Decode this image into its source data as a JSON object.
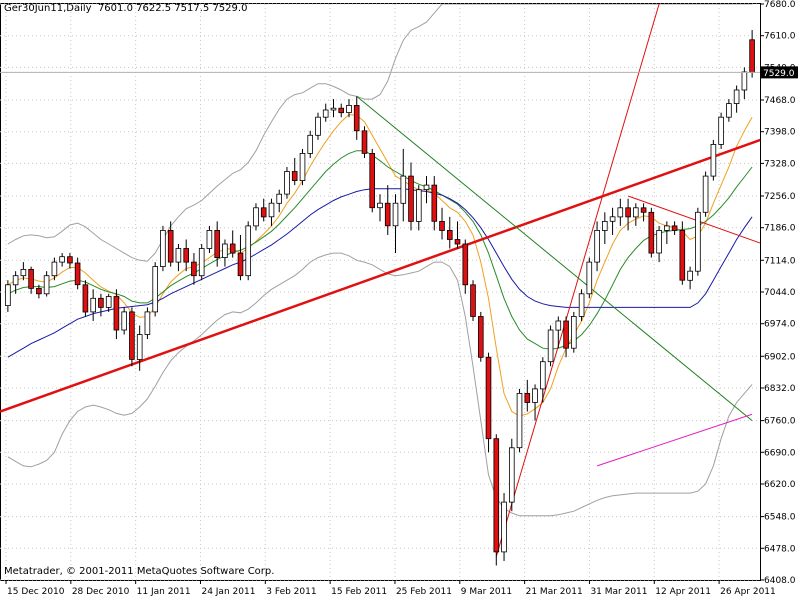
{
  "header": {
    "symbol": "Ger30Jun11,Daily",
    "ohlc": "7601.0 7622.5 7517.5 7529.0"
  },
  "footer": {
    "copyright": "Metatrader, © 2001-2011 MetaQuotes Software Corp."
  },
  "colors": {
    "bull": "#ffffff",
    "bear": "#dd1111",
    "candle_outline": "#000000",
    "ma_fast": "#f0a020",
    "ma_mid": "#2a8a2a",
    "ma_slow": "#1a1aa8",
    "bands": "#a0a0a0",
    "trend_red": "#e01010",
    "trend_green": "#208020",
    "trend_magenta": "#e020c0",
    "grid": "#c8c8c8"
  },
  "chart_data": {
    "type": "candlestick",
    "ylim": [
      6408,
      7680
    ],
    "y_ticks": [
      "7680.0",
      "7610.0",
      "7540.0",
      "7468.0",
      "7398.0",
      "7328.0",
      "7256.0",
      "7186.0",
      "7114.0",
      "7044.0",
      "6974.0",
      "6902.0",
      "6832.0",
      "6760.0",
      "6690.0",
      "6620.0",
      "6548.0",
      "6478.0",
      "6408.0"
    ],
    "x_ticks": [
      "15 Dec 2010",
      "28 Dec 2010",
      "11 Jan 2011",
      "24 Jan 2011",
      "3 Feb 2011",
      "15 Feb 2011",
      "25 Feb 2011",
      "9 Mar 2011",
      "21 Mar 2011",
      "31 Mar 2011",
      "12 Apr 2011",
      "26 Apr 2011"
    ],
    "current_price_label": "7529.0",
    "current_price": 7529.0,
    "candles": [
      [
        7014,
        7070,
        7000,
        7060
      ],
      [
        7060,
        7090,
        7040,
        7080
      ],
      [
        7080,
        7110,
        7070,
        7094
      ],
      [
        7094,
        7100,
        7040,
        7052
      ],
      [
        7052,
        7060,
        7030,
        7040
      ],
      [
        7040,
        7090,
        7034,
        7080
      ],
      [
        7080,
        7120,
        7070,
        7110
      ],
      [
        7110,
        7130,
        7100,
        7122
      ],
      [
        7122,
        7130,
        7096,
        7108
      ],
      [
        7108,
        7120,
        7050,
        7060
      ],
      [
        7060,
        7070,
        6990,
        7000
      ],
      [
        7000,
        7050,
        6980,
        7030
      ],
      [
        7030,
        7040,
        6990,
        7010
      ],
      [
        7010,
        7040,
        7000,
        7034
      ],
      [
        7034,
        7050,
        6940,
        6960
      ],
      [
        6960,
        7010,
        6950,
        7000
      ],
      [
        7000,
        7010,
        6880,
        6895
      ],
      [
        6895,
        6970,
        6870,
        6950
      ],
      [
        6950,
        7010,
        6940,
        7000
      ],
      [
        7000,
        7110,
        6990,
        7100
      ],
      [
        7100,
        7190,
        7090,
        7180
      ],
      [
        7180,
        7200,
        7100,
        7110
      ],
      [
        7110,
        7150,
        7090,
        7140
      ],
      [
        7140,
        7160,
        7090,
        7110
      ],
      [
        7110,
        7130,
        7060,
        7080
      ],
      [
        7080,
        7150,
        7070,
        7140
      ],
      [
        7140,
        7190,
        7130,
        7180
      ],
      [
        7180,
        7200,
        7100,
        7120
      ],
      [
        7120,
        7160,
        7100,
        7150
      ],
      [
        7150,
        7180,
        7120,
        7130
      ],
      [
        7130,
        7170,
        7070,
        7080
      ],
      [
        7080,
        7200,
        7070,
        7190
      ],
      [
        7190,
        7240,
        7180,
        7230
      ],
      [
        7230,
        7250,
        7200,
        7210
      ],
      [
        7210,
        7250,
        7190,
        7240
      ],
      [
        7240,
        7270,
        7220,
        7260
      ],
      [
        7260,
        7320,
        7250,
        7310
      ],
      [
        7310,
        7340,
        7280,
        7290
      ],
      [
        7290,
        7360,
        7280,
        7350
      ],
      [
        7350,
        7400,
        7340,
        7390
      ],
      [
        7390,
        7440,
        7380,
        7430
      ],
      [
        7430,
        7460,
        7420,
        7446
      ],
      [
        7446,
        7470,
        7430,
        7450
      ],
      [
        7450,
        7460,
        7430,
        7440
      ],
      [
        7440,
        7470,
        7430,
        7456
      ],
      [
        7456,
        7476,
        7380,
        7400
      ],
      [
        7400,
        7410,
        7340,
        7350
      ],
      [
        7350,
        7360,
        7220,
        7230
      ],
      [
        7230,
        7260,
        7200,
        7240
      ],
      [
        7240,
        7280,
        7170,
        7190
      ],
      [
        7190,
        7260,
        7130,
        7240
      ],
      [
        7240,
        7360,
        7200,
        7300
      ],
      [
        7300,
        7330,
        7180,
        7200
      ],
      [
        7200,
        7280,
        7180,
        7270
      ],
      [
        7270,
        7300,
        7240,
        7280
      ],
      [
        7280,
        7300,
        7180,
        7200
      ],
      [
        7200,
        7230,
        7160,
        7180
      ],
      [
        7180,
        7210,
        7140,
        7160
      ],
      [
        7160,
        7200,
        7140,
        7150
      ],
      [
        7150,
        7160,
        7040,
        7060
      ],
      [
        7060,
        7070,
        6980,
        6990
      ],
      [
        6990,
        7000,
        6890,
        6900
      ],
      [
        6900,
        6910,
        6690,
        6720
      ],
      [
        6720,
        6730,
        6440,
        6470
      ],
      [
        6470,
        6600,
        6450,
        6580
      ],
      [
        6580,
        6720,
        6560,
        6700
      ],
      [
        6700,
        6830,
        6690,
        6820
      ],
      [
        6820,
        6850,
        6780,
        6800
      ],
      [
        6800,
        6840,
        6760,
        6830
      ],
      [
        6830,
        6900,
        6800,
        6890
      ],
      [
        6890,
        6970,
        6880,
        6960
      ],
      [
        6960,
        6990,
        6920,
        6980
      ],
      [
        6980,
        6990,
        6900,
        6920
      ],
      [
        6920,
        7000,
        6910,
        6990
      ],
      [
        6990,
        7050,
        6980,
        7040
      ],
      [
        7040,
        7120,
        7030,
        7110
      ],
      [
        7110,
        7200,
        7090,
        7180
      ],
      [
        7180,
        7220,
        7150,
        7200
      ],
      [
        7200,
        7230,
        7170,
        7210
      ],
      [
        7210,
        7250,
        7190,
        7230
      ],
      [
        7230,
        7250,
        7180,
        7210
      ],
      [
        7210,
        7240,
        7190,
        7230
      ],
      [
        7230,
        7240,
        7200,
        7220
      ],
      [
        7220,
        7230,
        7120,
        7130
      ],
      [
        7130,
        7190,
        7110,
        7180
      ],
      [
        7180,
        7200,
        7150,
        7190
      ],
      [
        7190,
        7200,
        7170,
        7180
      ],
      [
        7180,
        7200,
        7060,
        7070
      ],
      [
        7070,
        7100,
        7050,
        7090
      ],
      [
        7090,
        7230,
        7080,
        7220
      ],
      [
        7220,
        7310,
        7210,
        7300
      ],
      [
        7300,
        7380,
        7290,
        7370
      ],
      [
        7370,
        7440,
        7360,
        7430
      ],
      [
        7430,
        7470,
        7420,
        7460
      ],
      [
        7460,
        7500,
        7440,
        7490
      ],
      [
        7490,
        7540,
        7470,
        7530
      ],
      [
        7601,
        7622.5,
        7517.5,
        7529
      ]
    ],
    "series": [
      {
        "key": "ma_fast",
        "values": [
          7060,
          7070,
          7075,
          7073,
          7068,
          7066,
          7075,
          7088,
          7098,
          7098,
          7086,
          7070,
          7055,
          7046,
          7038,
          7020,
          6998,
          6988,
          6990,
          7010,
          7040,
          7066,
          7082,
          7096,
          7100,
          7108,
          7120,
          7132,
          7138,
          7140,
          7130,
          7140,
          7156,
          7172,
          7190,
          7212,
          7240,
          7262,
          7290,
          7322,
          7350,
          7376,
          7400,
          7420,
          7436,
          7434,
          7420,
          7390,
          7360,
          7330,
          7300,
          7290,
          7278,
          7270,
          7270,
          7262,
          7246,
          7230,
          7220,
          7200,
          7170,
          7110,
          7030,
          6920,
          6820,
          6780,
          6770,
          6775,
          6786,
          6800,
          6830,
          6880,
          6920,
          6950,
          6980,
          7020,
          7070,
          7110,
          7150,
          7180,
          7196,
          7205,
          7212,
          7210,
          7196,
          7190,
          7186,
          7178,
          7160,
          7168,
          7196,
          7240,
          7280,
          7320,
          7366,
          7400,
          7430
        ]
      },
      {
        "key": "ma_mid",
        "values": [
          7040,
          7048,
          7054,
          7056,
          7056,
          7054,
          7056,
          7062,
          7068,
          7070,
          7066,
          7058,
          7050,
          7044,
          7040,
          7034,
          7024,
          7020,
          7020,
          7030,
          7044,
          7058,
          7068,
          7078,
          7086,
          7096,
          7106,
          7116,
          7124,
          7132,
          7136,
          7144,
          7154,
          7166,
          7178,
          7194,
          7212,
          7230,
          7250,
          7270,
          7290,
          7310,
          7326,
          7340,
          7350,
          7356,
          7356,
          7346,
          7334,
          7320,
          7310,
          7300,
          7290,
          7282,
          7276,
          7268,
          7258,
          7248,
          7238,
          7220,
          7200,
          7170,
          7130,
          7080,
          7030,
          6990,
          6960,
          6940,
          6930,
          6920,
          6918,
          6920,
          6926,
          6936,
          6950,
          6970,
          6996,
          7026,
          7060,
          7094,
          7120,
          7140,
          7158,
          7168,
          7174,
          7178,
          7180,
          7182,
          7184,
          7190,
          7200,
          7214,
          7232,
          7252,
          7276,
          7298,
          7320
        ]
      },
      {
        "key": "ma_slow",
        "values": [
          6900,
          6910,
          6920,
          6930,
          6938,
          6946,
          6954,
          6964,
          6974,
          6984,
          6990,
          6996,
          7000,
          7004,
          7008,
          7010,
          7012,
          7014,
          7016,
          7022,
          7030,
          7040,
          7048,
          7056,
          7064,
          7072,
          7080,
          7088,
          7096,
          7104,
          7110,
          7118,
          7128,
          7138,
          7148,
          7160,
          7172,
          7186,
          7200,
          7214,
          7226,
          7236,
          7246,
          7254,
          7260,
          7266,
          7270,
          7272,
          7272,
          7272,
          7272,
          7272,
          7270,
          7268,
          7266,
          7262,
          7258,
          7250,
          7240,
          7226,
          7208,
          7186,
          7160,
          7130,
          7100,
          7072,
          7050,
          7034,
          7024,
          7018,
          7014,
          7012,
          7010,
          7010,
          7010,
          7010,
          7010,
          7010,
          7010,
          7010,
          7010,
          7010,
          7010,
          7010,
          7010,
          7010,
          7010,
          7010,
          7010,
          7020,
          7040,
          7070,
          7100,
          7130,
          7160,
          7186,
          7210
        ]
      },
      {
        "key": "band_upper",
        "values": [
          7150,
          7160,
          7168,
          7170,
          7168,
          7164,
          7166,
          7178,
          7192,
          7196,
          7188,
          7174,
          7160,
          7150,
          7140,
          7130,
          7120,
          7114,
          7112,
          7130,
          7160,
          7190,
          7210,
          7228,
          7236,
          7246,
          7262,
          7278,
          7292,
          7306,
          7314,
          7330,
          7356,
          7390,
          7420,
          7448,
          7470,
          7480,
          7484,
          7494,
          7504,
          7504,
          7498,
          7490,
          7480,
          7476,
          7470,
          7470,
          7480,
          7510,
          7560,
          7600,
          7622,
          7630,
          7640,
          7660,
          7680,
          7680,
          7680,
          7680,
          7680,
          7680,
          7680,
          7680,
          7680,
          7680,
          7680,
          7680,
          7680,
          7680,
          7680,
          7680,
          7680,
          7680,
          7680,
          7680,
          7680,
          7680,
          7680,
          7680,
          7680,
          7680,
          7680,
          7680,
          7680,
          7680,
          7680,
          7680,
          7680,
          7680,
          7680,
          7680,
          7680,
          7680,
          7680,
          7680,
          7680
        ]
      },
      {
        "key": "band_lower",
        "values": [
          6680,
          6670,
          6660,
          6658,
          6664,
          6672,
          6690,
          6730,
          6760,
          6780,
          6790,
          6794,
          6790,
          6784,
          6776,
          6772,
          6776,
          6790,
          6808,
          6836,
          6866,
          6892,
          6910,
          6924,
          6936,
          6950,
          6966,
          6982,
          6994,
          7000,
          6998,
          7006,
          7020,
          7036,
          7050,
          7060,
          7070,
          7080,
          7094,
          7110,
          7120,
          7126,
          7130,
          7130,
          7124,
          7114,
          7110,
          7104,
          7094,
          7084,
          7080,
          7082,
          7086,
          7090,
          7100,
          7110,
          7110,
          7100,
          7070,
          6990,
          6880,
          6760,
          6640,
          6590,
          6566,
          6556,
          6550,
          6550,
          6550,
          6550,
          6550,
          6552,
          6556,
          6560,
          6568,
          6576,
          6584,
          6590,
          6594,
          6596,
          6598,
          6600,
          6600,
          6600,
          6600,
          6600,
          6600,
          6600,
          6600,
          6604,
          6620,
          6660,
          6720,
          6770,
          6800,
          6820,
          6840
        ]
      }
    ],
    "trendlines": [
      {
        "key": "trend_red",
        "from": [
          -1,
          6780
        ],
        "to": [
          101,
          7404
        ],
        "width": 2.5
      },
      {
        "key": "trend_red",
        "from": [
          63,
          6460
        ],
        "to": [
          84,
          7680
        ],
        "width": 1
      },
      {
        "key": "trend_green",
        "from": [
          45,
          7476
        ],
        "to": [
          96,
          6760
        ],
        "width": 1
      },
      {
        "key": "trend_red",
        "from": [
          80,
          7256
        ],
        "to": [
          100,
          7134
        ],
        "width": 1
      },
      {
        "key": "trend_magenta",
        "from": [
          76,
          6660
        ],
        "to": [
          96,
          6774
        ],
        "width": 1
      }
    ]
  }
}
